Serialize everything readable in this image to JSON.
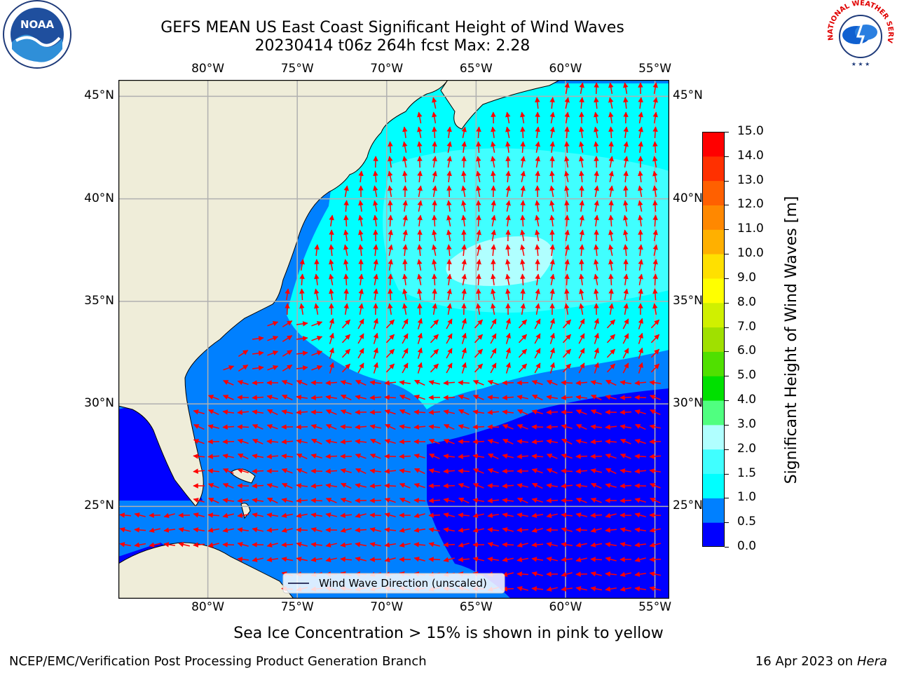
{
  "title": {
    "line1": "GEFS MEAN US East Coast Significant Height of Wind Waves",
    "line2": "20230414 t06z 264h fcst   Max: 2.28"
  },
  "map": {
    "lon_ticks": [
      "80°W",
      "75°W",
      "70°W",
      "65°W",
      "60°W",
      "55°W"
    ],
    "lat_ticks": [
      "45°N",
      "40°N",
      "35°N",
      "30°N",
      "25°N"
    ],
    "extent": {
      "lon_min": -85,
      "lon_max": -54.2,
      "lat_min": 20.5,
      "lat_max": 45.8
    },
    "land_color": "#efedd9",
    "legend_label": "Wind Wave Direction (unscaled)",
    "arrow_color": "#ff0000",
    "gridline_color": "#b0b0b0"
  },
  "colorbar": {
    "label": "Significant Height of Wind Waves [m]",
    "ticks": [
      "0.0",
      "0.5",
      "1.0",
      "1.5",
      "2.0",
      "3.0",
      "4.0",
      "5.0",
      "6.0",
      "7.0",
      "8.0",
      "9.0",
      "10.0",
      "11.0",
      "12.0",
      "13.0",
      "14.0",
      "15.0"
    ],
    "colors": [
      "#0000ff",
      "#0080ff",
      "#00ffff",
      "#40ffff",
      "#b0ffff",
      "#50ff80",
      "#00e000",
      "#50e000",
      "#a0e000",
      "#d0f000",
      "#ffff00",
      "#ffe000",
      "#ffb000",
      "#ff8800",
      "#ff6000",
      "#ff3000",
      "#ff0000"
    ]
  },
  "note": "Sea Ice Concentration > 15% is shown in pink to yellow",
  "footer": {
    "left": "NCEP/EMC/Verification Post Processing Product Generation Branch",
    "right_date": "16 Apr 2023 on ",
    "right_host": "Hera"
  },
  "logos": {
    "noaa_text": "NOAA",
    "nws_text": "NATIONAL WEATHER SERVICE"
  }
}
